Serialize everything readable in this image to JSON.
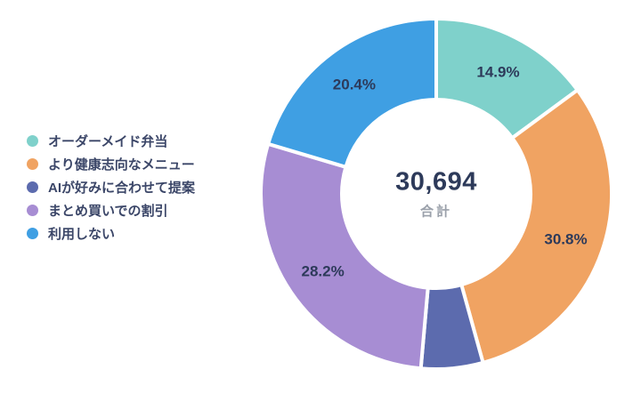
{
  "chart_data": {
    "type": "pie",
    "subtype": "donut",
    "title": "",
    "legend_position": "left",
    "center": {
      "total": "30,694",
      "total_label": "合計"
    },
    "segments": [
      {
        "label": "オーダーメイド弁当",
        "value_pct": 14.9,
        "display": "14.9%",
        "color": "#7fd1cb"
      },
      {
        "label": "より健康志向なメニュー",
        "value_pct": 30.8,
        "display": "30.8%",
        "color": "#f0a362"
      },
      {
        "label": "AIが好みに合わせて提案",
        "value_pct": 5.7,
        "display": "",
        "color": "#5c6bae"
      },
      {
        "label": "まとめ買いでの割引",
        "value_pct": 28.2,
        "display": "28.2%",
        "color": "#a78dd3"
      },
      {
        "label": "利用しない",
        "value_pct": 20.4,
        "display": "20.4%",
        "color": "#3f9fe3"
      }
    ],
    "colors": {
      "label_text": "#2d3a5a",
      "center_total_text": "#2d3a5a",
      "center_label_text": "#9ba1ab",
      "legend_text": "#3b4668"
    }
  }
}
